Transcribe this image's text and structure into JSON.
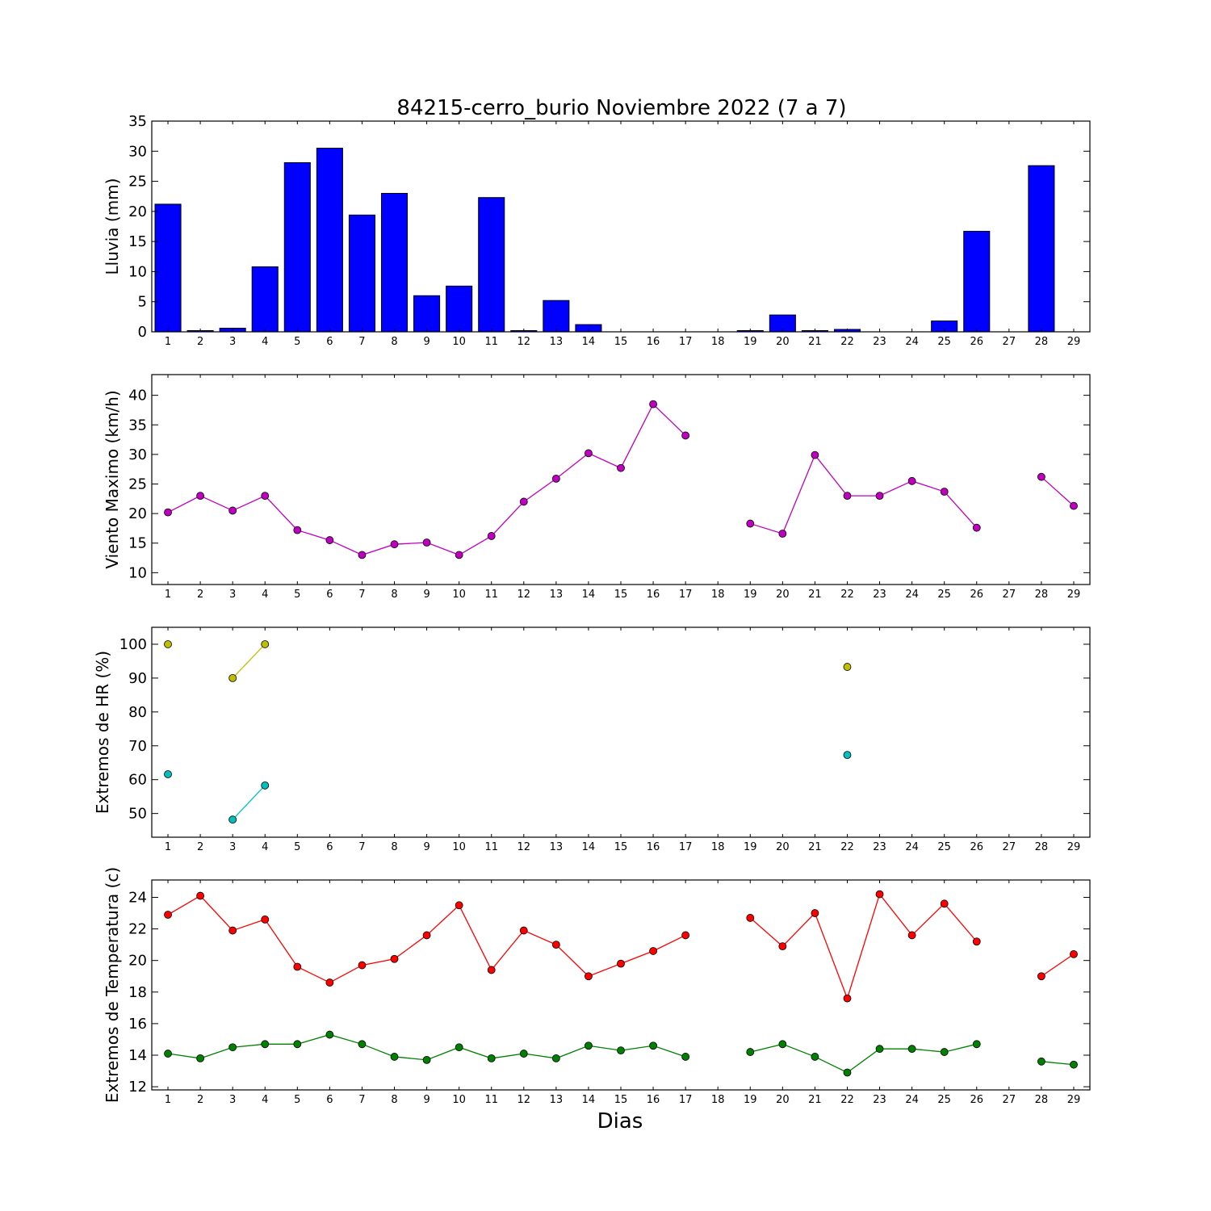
{
  "figure": {
    "title": "84215-cerro_burio Noviembre 2022  (7 a 7)",
    "xlabel": "Dias"
  },
  "chart_data": [
    {
      "type": "bar",
      "ylabel": "Lluvia (mm)",
      "xlim": [
        0.5,
        29.5
      ],
      "ylim": [
        0,
        35
      ],
      "yticks": [
        0,
        5,
        10,
        15,
        20,
        25,
        30,
        35
      ],
      "x": [
        1,
        2,
        3,
        4,
        5,
        6,
        7,
        8,
        9,
        10,
        11,
        12,
        13,
        14,
        15,
        16,
        17,
        18,
        19,
        20,
        21,
        22,
        23,
        24,
        25,
        26,
        27,
        28,
        29
      ],
      "series": [
        {
          "color": "#0000ff",
          "values": [
            21.2,
            0.2,
            0.6,
            10.8,
            28.1,
            30.5,
            19.4,
            23.0,
            6.0,
            7.6,
            22.3,
            0.2,
            5.2,
            1.2,
            0,
            0,
            0,
            0,
            0.2,
            2.8,
            0.2,
            0.4,
            0,
            0,
            1.8,
            16.7,
            0,
            27.6,
            0
          ]
        }
      ]
    },
    {
      "type": "line",
      "ylabel": "Viento Maximo (km/h)",
      "xlim": [
        0.5,
        29.5
      ],
      "ylim": [
        8,
        43.5
      ],
      "yticks": [
        10,
        15,
        20,
        25,
        30,
        35,
        40
      ],
      "x": [
        1,
        2,
        3,
        4,
        5,
        6,
        7,
        8,
        9,
        10,
        11,
        12,
        13,
        14,
        15,
        16,
        17,
        18,
        19,
        20,
        21,
        22,
        23,
        24,
        25,
        26,
        27,
        28,
        29
      ],
      "series": [
        {
          "color": "#bf00bf",
          "values": [
            20.2,
            23.0,
            20.5,
            23.0,
            17.2,
            15.5,
            13.0,
            14.8,
            15.1,
            13.0,
            16.2,
            22.0,
            25.9,
            30.2,
            27.7,
            38.5,
            33.2,
            null,
            18.3,
            16.6,
            29.9,
            23.0,
            23.0,
            25.5,
            23.7,
            17.6,
            null,
            26.2,
            21.3
          ]
        }
      ]
    },
    {
      "type": "line",
      "ylabel": "Extremos de HR (%)",
      "xlim": [
        0.5,
        29.5
      ],
      "ylim": [
        43,
        105
      ],
      "yticks": [
        50,
        60,
        70,
        80,
        90,
        100
      ],
      "x": [
        1,
        2,
        3,
        4,
        5,
        6,
        7,
        8,
        9,
        10,
        11,
        12,
        13,
        14,
        15,
        16,
        17,
        18,
        19,
        20,
        21,
        22,
        23,
        24,
        25,
        26,
        27,
        28,
        29
      ],
      "series": [
        {
          "color": "#bfbf00",
          "values": [
            100,
            null,
            90,
            100,
            null,
            null,
            null,
            null,
            null,
            null,
            null,
            null,
            null,
            null,
            null,
            null,
            null,
            null,
            null,
            null,
            null,
            93.3,
            null,
            null,
            null,
            null,
            null,
            null,
            null
          ]
        },
        {
          "color": "#00bfbf",
          "values": [
            61.6,
            null,
            48.2,
            58.3,
            null,
            null,
            null,
            null,
            null,
            null,
            null,
            null,
            null,
            null,
            null,
            null,
            null,
            null,
            null,
            null,
            null,
            67.3,
            null,
            null,
            null,
            null,
            null,
            null,
            null
          ]
        }
      ]
    },
    {
      "type": "line",
      "ylabel": "Extremos de Temperatura (c)",
      "xlim": [
        0.5,
        29.5
      ],
      "ylim": [
        11.8,
        25.1
      ],
      "yticks": [
        12,
        14,
        16,
        18,
        20,
        22,
        24
      ],
      "x": [
        1,
        2,
        3,
        4,
        5,
        6,
        7,
        8,
        9,
        10,
        11,
        12,
        13,
        14,
        15,
        16,
        17,
        18,
        19,
        20,
        21,
        22,
        23,
        24,
        25,
        26,
        27,
        28,
        29
      ],
      "series": [
        {
          "color": "#ff0000",
          "values": [
            22.9,
            24.1,
            21.9,
            22.6,
            19.6,
            18.6,
            19.7,
            20.1,
            21.6,
            23.5,
            19.4,
            21.9,
            21.0,
            19.0,
            19.8,
            20.6,
            21.6,
            null,
            22.7,
            20.9,
            23.0,
            17.6,
            24.2,
            21.6,
            23.6,
            21.2,
            null,
            19.0,
            20.4
          ]
        },
        {
          "color": "#008000",
          "values": [
            14.1,
            13.8,
            14.5,
            14.7,
            14.7,
            15.3,
            14.7,
            13.9,
            13.7,
            14.5,
            13.8,
            14.1,
            13.8,
            14.6,
            14.3,
            14.6,
            13.9,
            null,
            14.2,
            14.7,
            13.9,
            12.9,
            14.4,
            14.4,
            14.2,
            14.7,
            null,
            13.6,
            13.4
          ]
        }
      ]
    }
  ]
}
